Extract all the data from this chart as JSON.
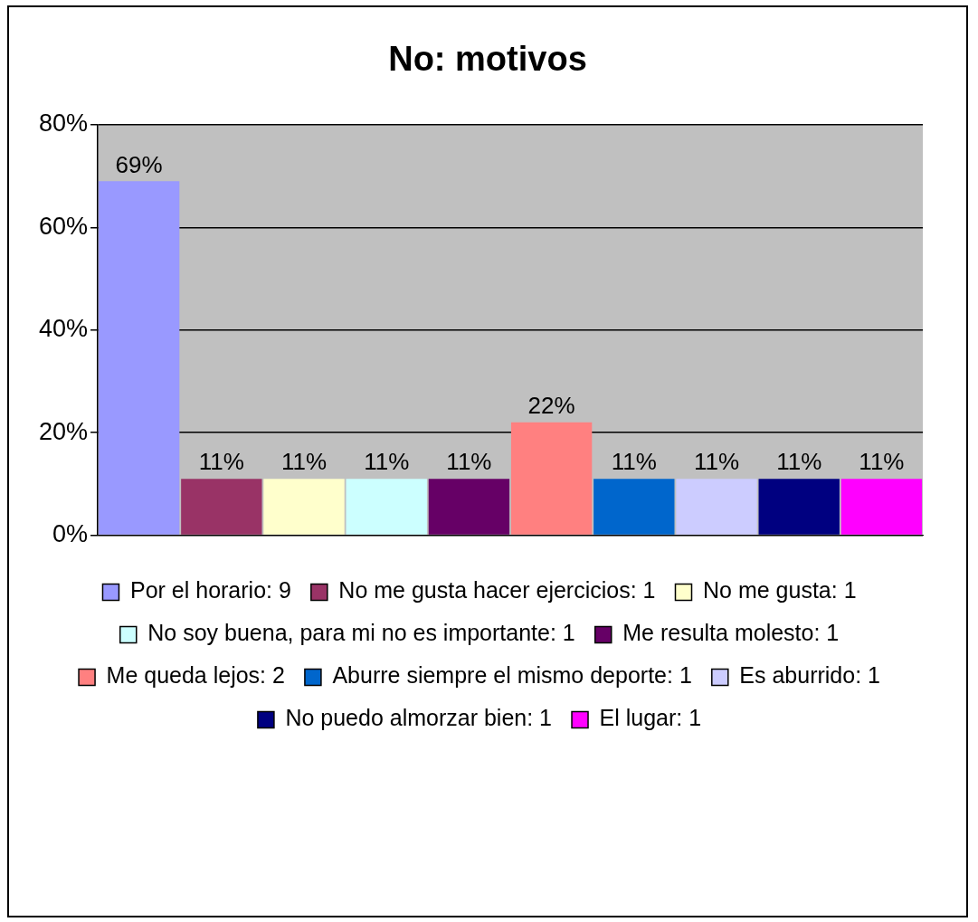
{
  "chart_data": {
    "type": "bar",
    "title": "No: motivos",
    "categories": [
      null,
      null,
      null,
      null,
      null,
      null,
      null,
      null,
      null,
      null
    ],
    "series": [
      {
        "name": "Por el horario: 9",
        "color": "#9999ff",
        "values": [
          69,
          null,
          null,
          null,
          null,
          null,
          null,
          null,
          null,
          null
        ],
        "value_labels": [
          "69%",
          null,
          null,
          null,
          null,
          null,
          null,
          null,
          null,
          null
        ]
      },
      {
        "name": "No me gusta hacer ejercicios: 1",
        "color": "#993366",
        "values": [
          null,
          11,
          null,
          null,
          null,
          null,
          null,
          null,
          null,
          null
        ],
        "value_labels": [
          null,
          "11%",
          null,
          null,
          null,
          null,
          null,
          null,
          null,
          null
        ]
      },
      {
        "name": "No me gusta: 1",
        "color": "#ffffcc",
        "values": [
          null,
          null,
          11,
          null,
          null,
          null,
          null,
          null,
          null,
          null
        ],
        "value_labels": [
          null,
          null,
          "11%",
          null,
          null,
          null,
          null,
          null,
          null,
          null
        ]
      },
      {
        "name": "No soy buena, para mi no es importante: 1",
        "color": "#ccffff",
        "values": [
          null,
          null,
          null,
          11,
          null,
          null,
          null,
          null,
          null,
          null
        ],
        "value_labels": [
          null,
          null,
          null,
          "11%",
          null,
          null,
          null,
          null,
          null,
          null
        ]
      },
      {
        "name": "Me resulta molesto: 1",
        "color": "#660066",
        "values": [
          null,
          null,
          null,
          null,
          11,
          null,
          null,
          null,
          null,
          null
        ],
        "value_labels": [
          null,
          null,
          null,
          null,
          "11%",
          null,
          null,
          null,
          null,
          null
        ]
      },
      {
        "name": "Me queda lejos: 2",
        "color": "#ff8080",
        "values": [
          null,
          null,
          null,
          null,
          null,
          22,
          null,
          null,
          null,
          null
        ],
        "value_labels": [
          null,
          null,
          null,
          null,
          null,
          "22%",
          null,
          null,
          null,
          null
        ]
      },
      {
        "name": "Aburre siempre el mismo deporte: 1",
        "color": "#0066cc",
        "values": [
          null,
          null,
          null,
          null,
          null,
          null,
          11,
          null,
          null,
          null
        ],
        "value_labels": [
          null,
          null,
          null,
          null,
          null,
          null,
          "11%",
          null,
          null,
          null
        ]
      },
      {
        "name": "Es aburrido: 1",
        "color": "#ccccff",
        "values": [
          null,
          null,
          null,
          null,
          null,
          null,
          null,
          11,
          null,
          null
        ],
        "value_labels": [
          null,
          null,
          null,
          null,
          null,
          null,
          null,
          "11%",
          null,
          null
        ]
      },
      {
        "name": "No puedo almorzar bien: 1",
        "color": "#000080",
        "values": [
          null,
          null,
          null,
          null,
          null,
          null,
          null,
          null,
          11,
          null
        ],
        "value_labels": [
          null,
          null,
          null,
          null,
          null,
          null,
          null,
          null,
          "11%",
          null
        ]
      },
      {
        "name": "El lugar: 1",
        "color": "#ff00ff",
        "values": [
          null,
          null,
          null,
          null,
          null,
          null,
          null,
          null,
          null,
          11
        ],
        "value_labels": [
          null,
          null,
          null,
          null,
          null,
          null,
          null,
          null,
          null,
          "11%"
        ]
      }
    ],
    "ylim": [
      0,
      80
    ],
    "yticks": [
      {
        "value": 0,
        "label": "0%"
      },
      {
        "value": 20,
        "label": "20%"
      },
      {
        "value": 40,
        "label": "40%"
      },
      {
        "value": 60,
        "label": "60%"
      },
      {
        "value": 80,
        "label": "80%"
      }
    ],
    "grid": "y",
    "legend": "bottom"
  }
}
